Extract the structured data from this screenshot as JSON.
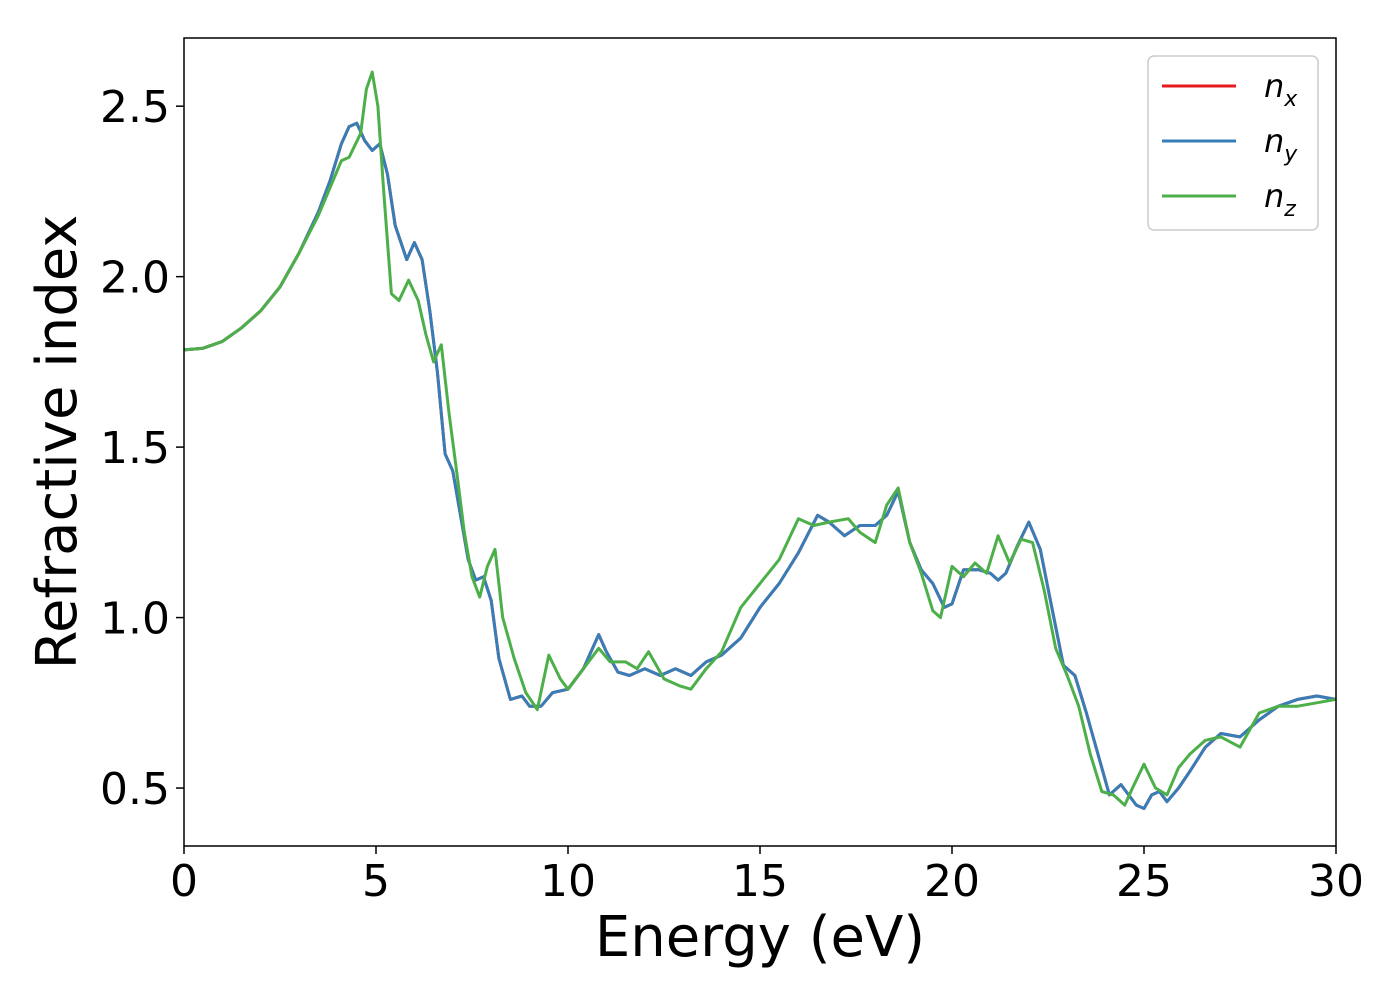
{
  "chart_data": {
    "type": "line",
    "title": "",
    "xlabel": "Energy (eV)",
    "ylabel": "Refractive index",
    "xlim": [
      0,
      30
    ],
    "ylim": [
      0.33,
      2.7
    ],
    "xticks": [
      0,
      5,
      10,
      15,
      20,
      25,
      30
    ],
    "yticks": [
      0.5,
      1.0,
      1.5,
      2.0,
      2.5
    ],
    "xtick_labels": [
      "0",
      "5",
      "10",
      "15",
      "20",
      "25",
      "30"
    ],
    "ytick_labels": [
      "0.5",
      "1.0",
      "1.5",
      "2.0",
      "2.5"
    ],
    "grid": false,
    "legend_position": "top-right",
    "series": [
      {
        "name": "n_x",
        "label_base": "n",
        "label_sub": "x",
        "color": "#e41a1c",
        "x": [
          0,
          0.5,
          1,
          1.5,
          2,
          2.5,
          3,
          3.5,
          3.8,
          4.1,
          4.3,
          4.5,
          4.7,
          4.9,
          5.1,
          5.3,
          5.5,
          5.8,
          6.0,
          6.2,
          6.4,
          6.6,
          6.8,
          7.0,
          7.2,
          7.4,
          7.6,
          7.8,
          8.0,
          8.2,
          8.5,
          8.8,
          9.0,
          9.3,
          9.6,
          10.0,
          10.4,
          10.8,
          11.0,
          11.3,
          11.6,
          12.0,
          12.4,
          12.8,
          13.2,
          13.6,
          14.0,
          14.5,
          15.0,
          15.5,
          16.0,
          16.5,
          16.8,
          17.2,
          17.6,
          18.0,
          18.3,
          18.6,
          18.9,
          19.2,
          19.5,
          19.8,
          20.0,
          20.3,
          20.7,
          21.0,
          21.2,
          21.4,
          21.7,
          22.0,
          22.3,
          22.6,
          22.9,
          23.2,
          23.5,
          23.8,
          24.1,
          24.4,
          24.6,
          24.8,
          25.0,
          25.2,
          25.4,
          25.6,
          25.9,
          26.2,
          26.6,
          27.0,
          27.5,
          28.0,
          28.5,
          29.0,
          29.5,
          30.0
        ],
        "y": [
          1.785,
          1.79,
          1.81,
          1.85,
          1.9,
          1.97,
          2.07,
          2.19,
          2.28,
          2.39,
          2.44,
          2.45,
          2.4,
          2.37,
          2.39,
          2.3,
          2.15,
          2.05,
          2.1,
          2.05,
          1.9,
          1.72,
          1.48,
          1.43,
          1.3,
          1.17,
          1.11,
          1.12,
          1.05,
          0.88,
          0.76,
          0.77,
          0.74,
          0.74,
          0.78,
          0.79,
          0.85,
          0.95,
          0.9,
          0.84,
          0.83,
          0.85,
          0.83,
          0.85,
          0.83,
          0.87,
          0.89,
          0.94,
          1.03,
          1.1,
          1.19,
          1.3,
          1.28,
          1.24,
          1.27,
          1.27,
          1.3,
          1.37,
          1.22,
          1.14,
          1.1,
          1.03,
          1.04,
          1.14,
          1.14,
          1.13,
          1.11,
          1.13,
          1.21,
          1.28,
          1.2,
          1.03,
          0.86,
          0.83,
          0.72,
          0.6,
          0.48,
          0.51,
          0.48,
          0.45,
          0.44,
          0.48,
          0.49,
          0.46,
          0.5,
          0.55,
          0.62,
          0.66,
          0.65,
          0.7,
          0.74,
          0.76,
          0.77,
          0.76
        ]
      },
      {
        "name": "n_y",
        "label_base": "n",
        "label_sub": "y",
        "color": "#377eb8",
        "x": [
          0,
          0.5,
          1,
          1.5,
          2,
          2.5,
          3,
          3.5,
          3.8,
          4.1,
          4.3,
          4.5,
          4.7,
          4.9,
          5.1,
          5.3,
          5.5,
          5.8,
          6.0,
          6.2,
          6.4,
          6.6,
          6.8,
          7.0,
          7.2,
          7.4,
          7.6,
          7.8,
          8.0,
          8.2,
          8.5,
          8.8,
          9.0,
          9.3,
          9.6,
          10.0,
          10.4,
          10.8,
          11.0,
          11.3,
          11.6,
          12.0,
          12.4,
          12.8,
          13.2,
          13.6,
          14.0,
          14.5,
          15.0,
          15.5,
          16.0,
          16.5,
          16.8,
          17.2,
          17.6,
          18.0,
          18.3,
          18.6,
          18.9,
          19.2,
          19.5,
          19.8,
          20.0,
          20.3,
          20.7,
          21.0,
          21.2,
          21.4,
          21.7,
          22.0,
          22.3,
          22.6,
          22.9,
          23.2,
          23.5,
          23.8,
          24.1,
          24.4,
          24.6,
          24.8,
          25.0,
          25.2,
          25.4,
          25.6,
          25.9,
          26.2,
          26.6,
          27.0,
          27.5,
          28.0,
          28.5,
          29.0,
          29.5,
          30.0
        ],
        "y": [
          1.785,
          1.79,
          1.81,
          1.85,
          1.9,
          1.97,
          2.07,
          2.19,
          2.28,
          2.39,
          2.44,
          2.45,
          2.4,
          2.37,
          2.39,
          2.3,
          2.15,
          2.05,
          2.1,
          2.05,
          1.9,
          1.72,
          1.48,
          1.43,
          1.3,
          1.17,
          1.11,
          1.12,
          1.05,
          0.88,
          0.76,
          0.77,
          0.74,
          0.74,
          0.78,
          0.79,
          0.85,
          0.95,
          0.9,
          0.84,
          0.83,
          0.85,
          0.83,
          0.85,
          0.83,
          0.87,
          0.89,
          0.94,
          1.03,
          1.1,
          1.19,
          1.3,
          1.28,
          1.24,
          1.27,
          1.27,
          1.3,
          1.37,
          1.22,
          1.14,
          1.1,
          1.03,
          1.04,
          1.14,
          1.14,
          1.13,
          1.11,
          1.13,
          1.21,
          1.28,
          1.2,
          1.03,
          0.86,
          0.83,
          0.72,
          0.6,
          0.48,
          0.51,
          0.48,
          0.45,
          0.44,
          0.48,
          0.49,
          0.46,
          0.5,
          0.55,
          0.62,
          0.66,
          0.65,
          0.7,
          0.74,
          0.76,
          0.77,
          0.76
        ]
      },
      {
        "name": "n_z",
        "label_base": "n",
        "label_sub": "z",
        "color": "#4daf4a",
        "x": [
          0,
          0.5,
          1,
          1.5,
          2,
          2.5,
          3,
          3.5,
          3.8,
          4.1,
          4.3,
          4.6,
          4.75,
          4.9,
          5.05,
          5.2,
          5.4,
          5.6,
          5.85,
          6.1,
          6.3,
          6.5,
          6.7,
          6.9,
          7.1,
          7.3,
          7.5,
          7.7,
          7.9,
          8.1,
          8.3,
          8.6,
          8.9,
          9.2,
          9.5,
          9.8,
          10.0,
          10.4,
          10.8,
          11.1,
          11.5,
          11.8,
          12.1,
          12.5,
          12.9,
          13.2,
          13.6,
          14.0,
          14.5,
          15.0,
          15.5,
          16.0,
          16.4,
          16.8,
          17.3,
          17.6,
          18.0,
          18.3,
          18.6,
          18.9,
          19.2,
          19.5,
          19.7,
          20.0,
          20.3,
          20.6,
          20.9,
          21.2,
          21.5,
          21.8,
          22.1,
          22.4,
          22.7,
          23.0,
          23.3,
          23.6,
          23.9,
          24.2,
          24.5,
          24.7,
          25.0,
          25.3,
          25.6,
          25.9,
          26.2,
          26.6,
          27.0,
          27.5,
          28.0,
          28.5,
          29.0,
          29.5,
          30.0
        ],
        "y": [
          1.785,
          1.79,
          1.81,
          1.85,
          1.9,
          1.97,
          2.07,
          2.18,
          2.26,
          2.34,
          2.35,
          2.42,
          2.55,
          2.6,
          2.5,
          2.25,
          1.95,
          1.93,
          1.99,
          1.93,
          1.83,
          1.75,
          1.8,
          1.6,
          1.43,
          1.25,
          1.12,
          1.06,
          1.15,
          1.2,
          1.0,
          0.88,
          0.78,
          0.73,
          0.89,
          0.82,
          0.79,
          0.85,
          0.91,
          0.87,
          0.87,
          0.85,
          0.9,
          0.82,
          0.8,
          0.79,
          0.85,
          0.9,
          1.03,
          1.1,
          1.17,
          1.29,
          1.27,
          1.28,
          1.29,
          1.25,
          1.22,
          1.33,
          1.38,
          1.22,
          1.13,
          1.02,
          1.0,
          1.15,
          1.12,
          1.16,
          1.13,
          1.24,
          1.16,
          1.23,
          1.22,
          1.08,
          0.91,
          0.83,
          0.74,
          0.6,
          0.49,
          0.48,
          0.45,
          0.5,
          0.57,
          0.5,
          0.48,
          0.56,
          0.6,
          0.64,
          0.65,
          0.62,
          0.72,
          0.74,
          0.74,
          0.75,
          0.76
        ]
      }
    ]
  }
}
